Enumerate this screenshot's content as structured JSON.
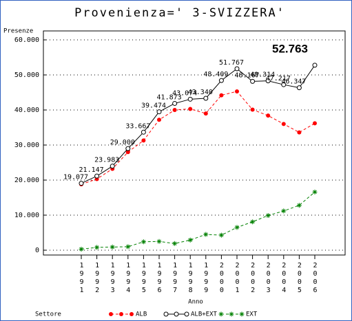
{
  "chart_data": {
    "type": "line",
    "title": "Provenienza=' 3-SVIZZERA'",
    "y_label": "Presenze",
    "x_label": "Anno",
    "legend_title": "Settore",
    "categories": [
      "1991",
      "1992",
      "1993",
      "1994",
      "1995",
      "1996",
      "1997",
      "1998",
      "1999",
      "2000",
      "2001",
      "2002",
      "2003",
      "2004",
      "2005",
      "2006"
    ],
    "series": [
      {
        "name": "ALB",
        "color": "#ff0000",
        "dash": true,
        "marker": "dot",
        "values": [
          18800,
          20300,
          23200,
          28000,
          31300,
          37200,
          40000,
          40300,
          39000,
          44200,
          45300,
          40100,
          38400,
          36000,
          33600,
          36200
        ]
      },
      {
        "name": "ALB+EXT",
        "color": "#000000",
        "dash": false,
        "marker": "circle",
        "values": [
          19077,
          21147,
          23983,
          29000,
          33667,
          39474,
          41873,
          43074,
          43340,
          48409,
          51767,
          48167,
          48314,
          47217,
          46347,
          52763
        ],
        "value_labels": [
          "19.077",
          "21.147",
          "23.983",
          "29.000",
          "33.667",
          "39.474",
          "41.873",
          "43.074",
          "43.340",
          "48.409",
          "51.767",
          "48.167",
          "48.314",
          "47.217",
          "46.347",
          "52.763"
        ]
      },
      {
        "name": "EXT",
        "color": "#008000",
        "dash": true,
        "marker": "star",
        "values": [
          300,
          800,
          900,
          1000,
          2400,
          2500,
          1900,
          2900,
          4500,
          4300,
          6500,
          8100,
          9900,
          11200,
          12800,
          16600
        ]
      }
    ],
    "ylim": [
      0,
      60000
    ],
    "yticks": [
      0,
      {
        "value": 10000,
        "label": "10.000"
      },
      {
        "value": 20000,
        "label": "20.000"
      },
      {
        "value": 30000,
        "label": "30.000"
      },
      {
        "value": 40000,
        "label": "40.000"
      },
      {
        "value": 50000,
        "label": "50.000"
      },
      {
        "value": 60000,
        "label": "60.000"
      }
    ],
    "grid": true
  }
}
